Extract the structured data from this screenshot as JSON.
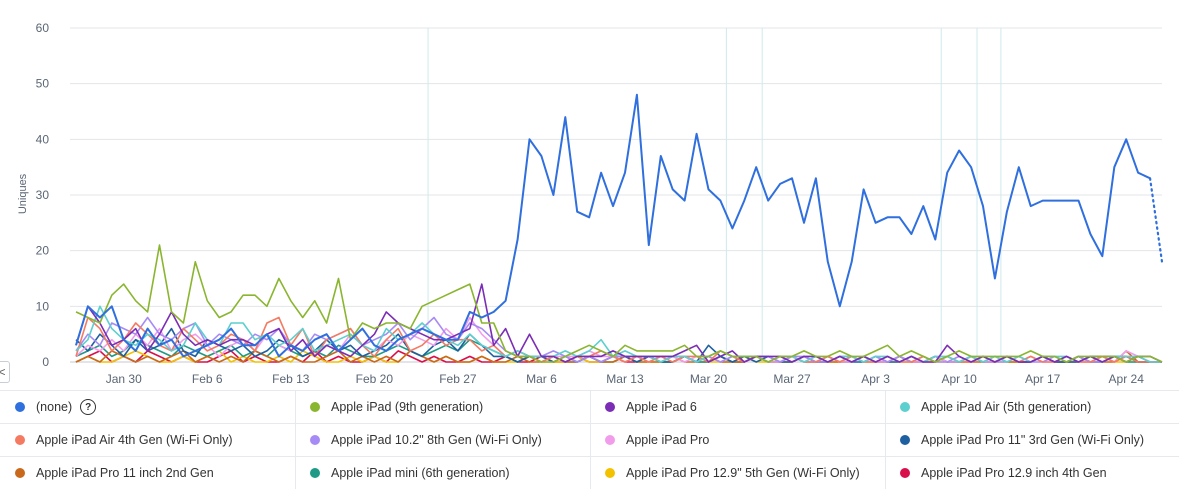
{
  "chart_data": {
    "type": "line",
    "ylabel": "Uniques",
    "ylim": [
      0,
      60
    ],
    "yticks": [
      0,
      10,
      20,
      30,
      40,
      50,
      60
    ],
    "x_start": "Jan 26",
    "x_end": "Apr 26",
    "xticks": [
      {
        "label": "Jan 30",
        "day": 4
      },
      {
        "label": "Feb 6",
        "day": 11
      },
      {
        "label": "Feb 13",
        "day": 18
      },
      {
        "label": "Feb 20",
        "day": 25
      },
      {
        "label": "Feb 27",
        "day": 32
      },
      {
        "label": "Mar 6",
        "day": 39
      },
      {
        "label": "Mar 13",
        "day": 46
      },
      {
        "label": "Mar 20",
        "day": 53
      },
      {
        "label": "Mar 27",
        "day": 60
      },
      {
        "label": "Apr 3",
        "day": 67
      },
      {
        "label": "Apr 10",
        "day": 74
      },
      {
        "label": "Apr 17",
        "day": 81
      },
      {
        "label": "Apr 24",
        "day": 88
      }
    ],
    "annotation_days": [
      29.5,
      54.5,
      57.5,
      72.5,
      75.5,
      77.5
    ],
    "series": [
      {
        "name": "(none)",
        "color": "#2f6fde",
        "width": 2,
        "dotted_last": true,
        "values": [
          3,
          10,
          8,
          10,
          4,
          2,
          6,
          3,
          4,
          1,
          2,
          3,
          4,
          6,
          3,
          3,
          5,
          1,
          3,
          2,
          4,
          5,
          2,
          4,
          6,
          3,
          2,
          4,
          5,
          6,
          5,
          4,
          4,
          9,
          8,
          9,
          11,
          22,
          40,
          37,
          30,
          44,
          27,
          26,
          34,
          28,
          34,
          48,
          21,
          37,
          31,
          29,
          41,
          31,
          29,
          24,
          29,
          35,
          29,
          32,
          33,
          25,
          33,
          18,
          10,
          18,
          31,
          25,
          26,
          26,
          23,
          28,
          22,
          34,
          38,
          35,
          28,
          15,
          27,
          35,
          28,
          29,
          29,
          29,
          29,
          23,
          19,
          35,
          40,
          34,
          33,
          18
        ]
      },
      {
        "name": "Apple iPad (9th generation)",
        "color": "#8ab52f",
        "width": 1.6,
        "values": [
          9,
          8,
          7,
          12,
          14,
          11,
          9,
          21,
          9,
          7,
          18,
          11,
          8,
          9,
          12,
          12,
          10,
          15,
          11,
          8,
          11,
          7,
          15,
          4,
          7,
          6,
          7,
          7,
          6,
          10,
          11,
          12,
          13,
          14,
          7,
          7,
          2,
          1,
          1,
          0,
          0,
          1,
          2,
          3,
          2,
          1,
          3,
          2,
          2,
          2,
          2,
          3,
          1,
          1,
          2,
          1,
          1,
          1,
          0,
          1,
          1,
          2,
          1,
          1,
          2,
          1,
          1,
          2,
          3,
          1,
          2,
          1,
          0,
          1,
          2,
          1,
          1,
          1,
          1,
          1,
          2,
          1,
          1,
          0,
          1,
          1,
          1,
          1,
          0,
          1,
          1,
          0
        ]
      },
      {
        "name": "Apple iPad 6",
        "color": "#7b2db5",
        "width": 1.6,
        "values": [
          3,
          10,
          7,
          3,
          4,
          6,
          2,
          5,
          9,
          5,
          3,
          4,
          3,
          4,
          4,
          3,
          5,
          6,
          2,
          4,
          1,
          3,
          2,
          1,
          3,
          5,
          9,
          7,
          6,
          5,
          4,
          4,
          5,
          6,
          14,
          3,
          6,
          1,
          5,
          1,
          1,
          0,
          1,
          1,
          1,
          2,
          1,
          1,
          1,
          1,
          1,
          2,
          3,
          0,
          1,
          2,
          0,
          1,
          1,
          1,
          0,
          1,
          1,
          0,
          1,
          0,
          1,
          0,
          1,
          0,
          1,
          0,
          0,
          3,
          1,
          0,
          1,
          0,
          1,
          0,
          0,
          1,
          0,
          1,
          0,
          1,
          0,
          1,
          0,
          1,
          1,
          0
        ]
      },
      {
        "name": "Apple iPad Air (5th generation)",
        "color": "#5ccfcf",
        "width": 1.6,
        "values": [
          2,
          4,
          10,
          6,
          4,
          3,
          5,
          4,
          2,
          3,
          7,
          4,
          3,
          7,
          7,
          4,
          5,
          3,
          4,
          6,
          2,
          3,
          4,
          5,
          3,
          2,
          6,
          4,
          5,
          7,
          5,
          4,
          3,
          5,
          3,
          2,
          1,
          2,
          1,
          1,
          1,
          2,
          1,
          2,
          4,
          1,
          2,
          1,
          1,
          0,
          1,
          1,
          0,
          1,
          2,
          1,
          1,
          1,
          0,
          1,
          1,
          0,
          1,
          0,
          1,
          1,
          0,
          1,
          1,
          0,
          1,
          0,
          1,
          1,
          0,
          1,
          0,
          1,
          0,
          1,
          0,
          1,
          1,
          1,
          0,
          1,
          0,
          1,
          1,
          1,
          0,
          0
        ]
      },
      {
        "name": "Apple iPad Air 4th Gen (Wi-Fi Only)",
        "color": "#f47b62",
        "width": 1.6,
        "values": [
          1,
          8,
          6,
          2,
          4,
          7,
          5,
          3,
          2,
          6,
          4,
          2,
          3,
          5,
          4,
          2,
          7,
          8,
          3,
          6,
          1,
          4,
          5,
          6,
          3,
          1,
          4,
          6,
          2,
          3,
          5,
          3,
          4,
          4,
          2,
          3,
          1,
          2,
          1,
          0,
          1,
          0,
          1,
          1,
          2,
          1,
          0,
          1,
          0,
          1,
          0,
          1,
          1,
          0,
          2,
          1,
          0,
          1,
          0,
          1,
          1,
          0,
          0,
          1,
          0,
          1,
          0,
          0,
          1,
          0,
          0,
          1,
          0,
          1,
          0,
          0,
          1,
          0,
          1,
          0,
          1,
          0,
          0,
          1,
          0,
          0,
          1,
          0,
          1,
          0,
          0,
          0
        ]
      },
      {
        "name": "Apple iPad 10.2\" 8th Gen (Wi-Fi Only)",
        "color": "#a78bf5",
        "width": 1.6,
        "values": [
          2,
          5,
          3,
          7,
          6,
          5,
          8,
          5,
          4,
          6,
          7,
          3,
          5,
          4,
          3,
          5,
          4,
          6,
          3,
          2,
          5,
          4,
          5,
          6,
          3,
          4,
          5,
          7,
          4,
          6,
          8,
          5,
          4,
          7,
          6,
          4,
          2,
          1,
          1,
          1,
          2,
          1,
          0,
          1,
          0,
          1,
          1,
          1,
          1,
          1,
          1,
          1,
          0,
          1,
          0,
          1,
          1,
          1,
          1,
          0,
          1,
          1,
          0,
          0,
          1,
          1,
          0,
          1,
          0,
          1,
          0,
          1,
          0,
          0,
          1,
          0,
          1,
          0,
          0,
          1,
          0,
          0,
          1,
          0,
          1,
          0,
          0,
          1,
          0,
          1,
          0,
          0
        ]
      },
      {
        "name": "Apple iPad Pro",
        "color": "#f29cec",
        "width": 1.6,
        "values": [
          1,
          3,
          2,
          4,
          2,
          5,
          3,
          6,
          2,
          4,
          5,
          3,
          1,
          3,
          4,
          2,
          5,
          3,
          2,
          4,
          1,
          3,
          2,
          5,
          3,
          2,
          4,
          3,
          5,
          4,
          3,
          6,
          4,
          8,
          5,
          3,
          1,
          2,
          1,
          0,
          1,
          1,
          1,
          2,
          1,
          1,
          0,
          1,
          0,
          1,
          1,
          0,
          1,
          1,
          0,
          1,
          0,
          1,
          0,
          0,
          1,
          0,
          0,
          1,
          0,
          0,
          1,
          0,
          0,
          1,
          0,
          0,
          1,
          0,
          0,
          1,
          0,
          0,
          1,
          0,
          1,
          0,
          0,
          1,
          0,
          0,
          1,
          0,
          2,
          1,
          0,
          0
        ]
      },
      {
        "name": "Apple iPad Pro 11\" 3rd Gen (Wi-Fi Only)",
        "color": "#1d5fa0",
        "width": 1.6,
        "values": [
          4,
          2,
          5,
          3,
          1,
          4,
          2,
          3,
          6,
          2,
          1,
          4,
          3,
          2,
          3,
          1,
          2,
          4,
          3,
          1,
          2,
          4,
          2,
          3,
          1,
          2,
          3,
          5,
          2,
          1,
          3,
          4,
          2,
          5,
          3,
          1,
          1,
          0,
          1,
          1,
          0,
          1,
          0,
          1,
          0,
          1,
          1,
          0,
          1,
          0,
          0,
          1,
          0,
          3,
          1,
          0,
          1,
          0,
          1,
          0,
          0,
          1,
          0,
          0,
          1,
          0,
          0,
          1,
          0,
          0,
          1,
          0,
          1,
          0,
          0,
          1,
          0,
          0,
          1,
          0,
          0,
          1,
          0,
          0,
          0,
          1,
          1,
          1,
          1,
          0,
          0,
          0
        ]
      },
      {
        "name": "Apple iPad Pro 11 inch 2nd Gen",
        "color": "#c9691c",
        "width": 1.6,
        "values": [
          0,
          1,
          0,
          2,
          1,
          0,
          1,
          0,
          1,
          2,
          0,
          1,
          0,
          1,
          0,
          2,
          1,
          0,
          1,
          0,
          0,
          1,
          2,
          0,
          1,
          0,
          1,
          0,
          2,
          1,
          0,
          1,
          0,
          0,
          1,
          0,
          0,
          1,
          0,
          0,
          1,
          0,
          0,
          1,
          0,
          0,
          1,
          0,
          0,
          0,
          1,
          0,
          0,
          1,
          0,
          0,
          0,
          1,
          0,
          0,
          0,
          1,
          0,
          0,
          0,
          1,
          0,
          0,
          0,
          1,
          0,
          0,
          0,
          1,
          0,
          0,
          0,
          1,
          0,
          0,
          0,
          1,
          0,
          0,
          0,
          1,
          0,
          0,
          2,
          0,
          0,
          0
        ]
      },
      {
        "name": "Apple iPad mini (6th generation)",
        "color": "#1e9a86",
        "width": 1.6,
        "values": [
          1,
          2,
          3,
          1,
          2,
          4,
          3,
          2,
          1,
          3,
          2,
          1,
          2,
          3,
          1,
          2,
          1,
          3,
          2,
          1,
          2,
          1,
          3,
          2,
          1,
          1,
          2,
          3,
          2,
          1,
          2,
          3,
          2,
          4,
          3,
          2,
          1,
          0,
          1,
          0,
          1,
          0,
          0,
          1,
          0,
          0,
          1,
          0,
          1,
          0,
          0,
          1,
          0,
          0,
          1,
          0,
          0,
          1,
          0,
          0,
          1,
          0,
          0,
          1,
          0,
          0,
          1,
          0,
          0,
          1,
          0,
          0,
          1,
          0,
          0,
          1,
          0,
          0,
          1,
          0,
          0,
          1,
          0,
          0,
          1,
          0,
          0,
          1,
          0,
          0,
          0,
          0
        ]
      },
      {
        "name": "Apple iPad Pro 12.9\" 5th Gen (Wi-Fi Only)",
        "color": "#f2c200",
        "width": 1.6,
        "values": [
          0,
          1,
          0,
          0,
          1,
          2,
          1,
          0,
          0,
          1,
          0,
          1,
          2,
          0,
          1,
          0,
          0,
          1,
          0,
          2,
          1,
          0,
          0,
          1,
          0,
          1,
          0,
          0,
          2,
          1,
          0,
          1,
          0,
          0,
          1,
          0,
          0,
          0,
          1,
          0,
          0,
          0,
          1,
          0,
          0,
          0,
          1,
          0,
          0,
          0,
          0,
          1,
          0,
          0,
          0,
          0,
          1,
          0,
          0,
          0,
          0,
          1,
          0,
          0,
          0,
          0,
          1,
          0,
          0,
          0,
          0,
          1,
          0,
          0,
          0,
          0,
          1,
          0,
          0,
          0,
          0,
          1,
          0,
          0,
          0,
          0,
          1,
          0,
          0,
          0,
          0,
          0
        ]
      },
      {
        "name": "Apple iPad Pro 12.9 inch 4th Gen",
        "color": "#d90f4c",
        "width": 1.6,
        "values": [
          0,
          1,
          2,
          0,
          1,
          0,
          2,
          1,
          0,
          1,
          0,
          0,
          1,
          2,
          0,
          1,
          0,
          0,
          1,
          0,
          2,
          0,
          1,
          0,
          0,
          1,
          0,
          2,
          1,
          0,
          1,
          0,
          0,
          1,
          0,
          0,
          1,
          0,
          0,
          1,
          0,
          0,
          1,
          0,
          0,
          1,
          0,
          0,
          1,
          0,
          0,
          1,
          0,
          0,
          1,
          0,
          0,
          1,
          0,
          0,
          1,
          0,
          0,
          1,
          0,
          0,
          1,
          0,
          0,
          1,
          0,
          0,
          1,
          0,
          0,
          1,
          0,
          0,
          1,
          0,
          0,
          1,
          0,
          0,
          1,
          0,
          0,
          1,
          1,
          0,
          0,
          0
        ]
      }
    ]
  },
  "legend": {
    "items": [
      {
        "label": "(none)",
        "color": "#2f6fde",
        "help": "?"
      },
      {
        "label": "Apple iPad (9th generation)",
        "color": "#8ab52f"
      },
      {
        "label": "Apple iPad 6",
        "color": "#7b2db5"
      },
      {
        "label": "Apple iPad Air (5th generation)",
        "color": "#5ccfcf"
      },
      {
        "label": "Apple iPad Air 4th Gen (Wi-Fi Only)",
        "color": "#f47b62"
      },
      {
        "label": "Apple iPad 10.2\" 8th Gen (Wi-Fi Only)",
        "color": "#a78bf5"
      },
      {
        "label": "Apple iPad Pro",
        "color": "#f29cec"
      },
      {
        "label": "Apple iPad Pro 11\" 3rd Gen (Wi-Fi Only)",
        "color": "#1d5fa0"
      },
      {
        "label": "Apple iPad Pro 11 inch 2nd Gen",
        "color": "#c9691c"
      },
      {
        "label": "Apple iPad mini (6th generation)",
        "color": "#1e9a86"
      },
      {
        "label": "Apple iPad Pro 12.9\" 5th Gen (Wi-Fi Only)",
        "color": "#f2c200"
      },
      {
        "label": "Apple iPad Pro 12.9 inch 4th Gen",
        "color": "#d90f4c"
      }
    ]
  },
  "controls": {
    "scroll_left": "<"
  }
}
